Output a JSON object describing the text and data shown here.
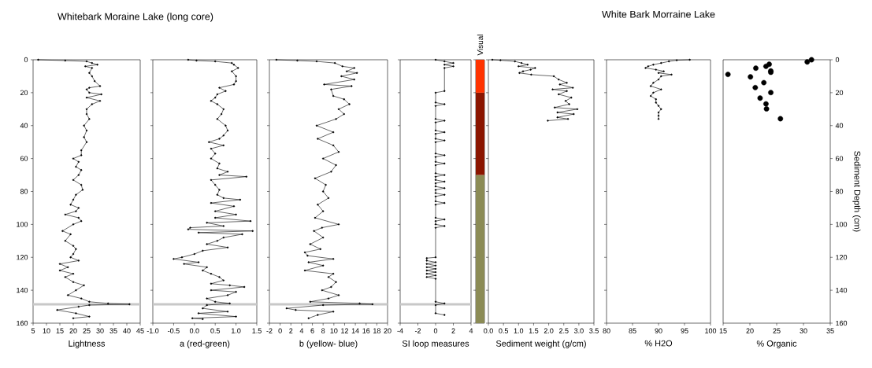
{
  "chart_data": [
    {
      "type": "line",
      "orientation": "horizontal",
      "title": "Whitebark Moraine Lake (long core)",
      "xlabel": "Lightness",
      "color": "#000000",
      "marker": "circle",
      "values": [
        6.9,
        17,
        25,
        27,
        29,
        24.5,
        27,
        26,
        27,
        28,
        30,
        26,
        25,
        26,
        30.5,
        25,
        30,
        27,
        25,
        25,
        26,
        24,
        25,
        24,
        25,
        23,
        23,
        20,
        22,
        21,
        23,
        22,
        20,
        23,
        23.5,
        21,
        20,
        19,
        22,
        21,
        17,
        22,
        23,
        20,
        16,
        19,
        17,
        20,
        21,
        20,
        19,
        22,
        15,
        18,
        15,
        20,
        17,
        20,
        24,
        21,
        18,
        23,
        26,
        33,
        41,
        26,
        22,
        14,
        21,
        26,
        20
      ],
      "x": [
        0,
        0.5,
        1,
        2,
        3,
        4,
        5,
        8,
        10,
        13,
        16,
        17,
        18,
        20,
        21,
        23,
        25,
        27,
        30,
        33,
        36,
        40,
        43,
        47,
        50,
        55,
        58,
        60,
        62,
        65,
        67,
        70,
        73,
        76,
        79,
        82,
        85,
        88,
        90,
        92,
        94,
        96,
        98,
        100,
        104,
        106,
        110,
        113,
        115,
        118,
        120,
        122,
        124,
        126,
        128,
        130,
        132,
        135,
        137,
        140,
        143,
        145,
        147,
        148,
        148.5,
        149,
        150,
        152,
        154,
        156,
        157
      ],
      "xlim": [
        5,
        45
      ],
      "xticks": [
        5,
        10,
        15,
        20,
        25,
        30,
        35,
        40,
        45
      ],
      "ylim": [
        160,
        0
      ],
      "yticks": [
        0,
        20,
        40,
        60,
        80,
        100,
        120,
        140,
        160
      ],
      "ref_lines": [
        {
          "axis": "y",
          "value": 148.5,
          "color": "#c8c8c8"
        }
      ]
    },
    {
      "type": "line",
      "orientation": "horizontal",
      "xlabel": "a (red-green)",
      "color": "#000000",
      "marker": "circle",
      "values": [
        -0.15,
        0.05,
        0.5,
        0.9,
        0.95,
        1.05,
        0.9,
        1.0,
        1.0,
        0.95,
        0.6,
        0.75,
        0.55,
        0.5,
        0.4,
        0.55,
        0.7,
        0.65,
        0.55,
        0.75,
        0.8,
        0.7,
        0.6,
        0.35,
        0.7,
        0.4,
        0.5,
        0.4,
        0.6,
        0.55,
        0.8,
        0.6,
        1.25,
        0.4,
        0.5,
        0.6,
        0.55,
        0.7,
        1.1,
        0.4,
        0.95,
        0.5,
        1.0,
        0.5,
        1.35,
        0.3,
        0.7,
        -0.1,
        -0.15,
        1.4,
        0.1,
        1.15,
        0.7,
        0.55,
        0.3,
        0.8,
        0.2,
        0.0,
        -0.3,
        -0.5,
        0.1,
        -0.25,
        0.3,
        0.2,
        0.4,
        0.6,
        0.7,
        0.4,
        0.85,
        1.2,
        0.4,
        1.0,
        0.8,
        0.3,
        0.5,
        0.85,
        0.3,
        0.2,
        0.8,
        0.1,
        1.0,
        -0.05,
        0.2
      ],
      "x": [
        0,
        0.5,
        1,
        2,
        3,
        5,
        7,
        10,
        13,
        15,
        17,
        19,
        21,
        23,
        25,
        27,
        30,
        33,
        36,
        40,
        43,
        46,
        48,
        50,
        52,
        54,
        57,
        60,
        63,
        66,
        68,
        70,
        71,
        73,
        76,
        79,
        82,
        84,
        85,
        87,
        89,
        92,
        94,
        96,
        98,
        99,
        101,
        102,
        103,
        104,
        105,
        106,
        108,
        110,
        112,
        114,
        116,
        118,
        120,
        121,
        123,
        124,
        126,
        128,
        130,
        132,
        134,
        136,
        137,
        138,
        140,
        141,
        143,
        145,
        147,
        148,
        149,
        151,
        153,
        154,
        156,
        157,
        157.5
      ],
      "xlim": [
        -1.0,
        1.5
      ],
      "xticks": [
        {
          "value": -1.0,
          "label": "-1.0"
        },
        {
          "value": -0.5,
          "label": "-0.5"
        },
        {
          "value": 0,
          "label": "0.0"
        },
        {
          "value": 0.5,
          "label": "0.5"
        },
        {
          "value": 1.0,
          "label": "1.0"
        },
        {
          "value": 1.5,
          "label": "1.5"
        }
      ],
      "ylim": [
        160,
        0
      ],
      "yticks": [
        0,
        20,
        40,
        60,
        80,
        100,
        120,
        140,
        160
      ],
      "tick_labels": "x",
      "ref_lines": [
        {
          "axis": "y",
          "value": 148.5,
          "color": "#c8c8c8"
        }
      ]
    },
    {
      "type": "line",
      "orientation": "horizontal",
      "xlabel": "b (yellow- blue)",
      "color": "#000000",
      "marker": "circle",
      "values": [
        -0.7,
        3.2,
        6.8,
        10.2,
        11.6,
        13.8,
        12.4,
        14.3,
        11.4,
        13.8,
        8.2,
        13.3,
        9.5,
        9.9,
        11.9,
        12.9,
        10.9,
        11.9,
        10.4,
        6.8,
        9.9,
        7.0,
        9.9,
        10.9,
        8.0,
        10.4,
        9.5,
        6.5,
        8.5,
        8.0,
        9.0,
        7.0,
        8.0,
        6.5,
        10.9,
        7.8,
        6.3,
        8.0,
        5.6,
        7.5,
        4.6,
        5.1,
        9.9,
        5.3,
        8.0,
        4.6,
        9.9,
        9.0,
        10.4,
        9.5,
        7.8,
        10.9,
        9.0,
        5.6,
        14.8,
        17.2,
        8.0,
        1.2,
        2.9,
        9.9,
        7.0,
        5.3
      ],
      "x": [
        0,
        0.5,
        1,
        2,
        4,
        5,
        7,
        8,
        10,
        12,
        15,
        16,
        18,
        22,
        24,
        27,
        30,
        33,
        36,
        40,
        44,
        48,
        52,
        56,
        60,
        64,
        68,
        72,
        76,
        80,
        84,
        88,
        92,
        96,
        100,
        102,
        104,
        108,
        112,
        115,
        117,
        119,
        121,
        123,
        125,
        128,
        130,
        132,
        135,
        138,
        140,
        143,
        145,
        147,
        148,
        148.5,
        149,
        151,
        152,
        153,
        155,
        157
      ],
      "xlim": [
        -2,
        20
      ],
      "xticks": [
        -2,
        0,
        2,
        4,
        6,
        8,
        10,
        12,
        14,
        16,
        18,
        20
      ],
      "ylim": [
        160,
        0
      ],
      "yticks": [
        0,
        20,
        40,
        60,
        80,
        100,
        120,
        140,
        160
      ],
      "tick_labels": "x",
      "ref_lines": [
        {
          "axis": "y",
          "value": 148.5,
          "color": "#c8c8c8"
        }
      ]
    },
    {
      "type": "line",
      "orientation": "horizontal",
      "xlabel": "SI loop measures",
      "color": "#000000",
      "marker": "circle",
      "values": [
        0,
        1,
        2,
        1,
        2,
        1,
        1,
        0,
        0,
        1,
        0,
        0,
        1,
        0,
        0,
        1,
        0,
        0,
        1,
        0,
        0,
        1,
        0,
        0,
        1,
        0,
        0,
        1,
        0,
        0,
        1,
        0,
        0,
        1,
        0,
        0,
        1,
        0,
        0,
        1,
        0,
        0,
        1,
        0,
        0,
        1,
        0,
        0,
        -1,
        -1,
        0,
        -1,
        0,
        -1,
        0,
        -1,
        0,
        -1,
        0,
        -1,
        0,
        0,
        1,
        0,
        0,
        1
      ],
      "x": [
        0,
        1,
        2,
        3,
        4,
        5,
        19,
        20,
        26,
        27,
        28,
        36,
        37,
        38,
        43,
        44,
        45,
        48,
        49,
        50,
        57,
        58,
        59,
        62,
        63,
        64,
        69,
        70,
        71,
        73,
        74,
        75,
        77,
        78,
        79,
        81,
        82,
        83,
        86,
        87,
        88,
        96,
        97,
        98,
        100,
        101,
        102,
        120,
        120.5,
        122,
        123,
        124,
        125,
        126,
        127,
        128,
        129,
        130,
        131,
        132,
        133,
        147,
        148,
        149,
        154,
        155
      ],
      "xlim": [
        -4,
        4
      ],
      "xticks": [
        -4,
        -2,
        0,
        2,
        4
      ],
      "ylim": [
        160,
        0
      ],
      "yticks": [
        0,
        20,
        40,
        60,
        80,
        100,
        120,
        140,
        160
      ],
      "tick_labels": "x",
      "ref_lines": [
        {
          "axis": "y",
          "value": 148.5,
          "color": "#c8c8c8"
        }
      ]
    },
    {
      "type": "bar",
      "title": "Visual",
      "stacked": true,
      "categories": [
        null
      ],
      "series": [
        {
          "color": "#ff3300",
          "values": [
            20
          ]
        },
        {
          "color": "#8b1500",
          "values": [
            50
          ]
        },
        {
          "color": "#8b8b55",
          "values": [
            90
          ]
        }
      ],
      "ylim": [
        160,
        0
      ],
      "yticks": [
        0,
        20,
        40,
        60,
        80,
        100,
        120,
        140,
        160
      ],
      "tick_labels": false
    },
    {
      "type": "line",
      "orientation": "horizontal",
      "xlabel": "Sediment weight (g/cm)",
      "color": "#000000",
      "marker": "circle",
      "values": [
        0.13,
        0.4,
        0.88,
        1.1,
        1.3,
        1.0,
        1.55,
        1.4,
        1.15,
        1.03,
        1.42,
        2.17,
        2.33,
        2.6,
        2.37,
        2.8,
        2.13,
        2.6,
        2.33,
        2.75,
        2.56,
        2.68,
        2.2,
        2.95,
        2.29,
        2.83,
        2.29,
        2.64,
        1.97
      ],
      "x": [
        0,
        0.3,
        1,
        2,
        3,
        4,
        5,
        6,
        7,
        8,
        9,
        10,
        12,
        14,
        15,
        17,
        18,
        19,
        21,
        23,
        25,
        27,
        29,
        30,
        32,
        33,
        35,
        36,
        37
      ],
      "xlim": [
        0,
        3.5
      ],
      "xticks": [
        {
          "value": 0,
          "label": "0.0"
        },
        {
          "value": 0.5,
          "label": "0.5"
        },
        {
          "value": 1.0,
          "label": "1.0"
        },
        {
          "value": 1.5,
          "label": "1.5"
        },
        {
          "value": 2.0,
          "label": "2.0"
        },
        {
          "value": 2.5,
          "label": "2.5"
        },
        {
          "value": 3.0,
          "label": "3.0"
        },
        {
          "value": 3.5,
          "label": "3.5"
        }
      ],
      "ylim": [
        160,
        0
      ],
      "yticks": [
        0,
        20,
        40,
        60,
        80,
        100,
        120,
        140,
        160
      ],
      "tick_labels": "x"
    },
    {
      "type": "line",
      "orientation": "horizontal",
      "title": "White Bark Morraine Lake",
      "xlabel": "% H2O",
      "color": "#000000",
      "marker": "circle",
      "values": [
        96,
        93.5,
        92,
        90.5,
        89,
        88,
        87.5,
        89.5,
        91,
        90,
        92.5,
        90.5,
        90,
        89,
        88.5,
        90.5,
        89,
        88.5,
        89.5,
        89.5,
        90,
        90.5,
        90,
        90,
        90
      ],
      "x": [
        0,
        0.3,
        1,
        2,
        3,
        4,
        5,
        6,
        7,
        8,
        9,
        10,
        12,
        14,
        16,
        18,
        20,
        22,
        24,
        26,
        28,
        30,
        32,
        34,
        36
      ],
      "xlim": [
        80,
        100
      ],
      "xticks": [
        80,
        85,
        90,
        95,
        100
      ],
      "ylim": [
        160,
        0
      ],
      "yticks": [
        0,
        20,
        40,
        60,
        80,
        100,
        120,
        140,
        160
      ],
      "tick_labels": "x"
    },
    {
      "type": "scatter",
      "orientation": "horizontal",
      "xlabel": "% Organic",
      "ylabel": "Sediment Depth (cm)",
      "color": "#000000",
      "marker": "circle",
      "values": [
        31.5,
        30.7,
        23.6,
        23.0,
        21.1,
        23.9,
        23.9,
        15.9,
        20.1,
        22.6,
        21.0,
        23.9,
        21.9,
        23.0,
        23.1,
        25.7
      ],
      "x": [
        0,
        1.3,
        2.7,
        4,
        5.1,
        6.8,
        7.6,
        8.9,
        10.4,
        13.9,
        16.9,
        19.9,
        23.3,
        26.8,
        29.8,
        35.8
      ],
      "xlim": [
        15,
        35
      ],
      "xticks": [
        15,
        20,
        25,
        30,
        35
      ],
      "ylim": [
        160,
        0
      ],
      "yticks": [
        0,
        20,
        40,
        60,
        80,
        100,
        120,
        140,
        160
      ]
    }
  ]
}
